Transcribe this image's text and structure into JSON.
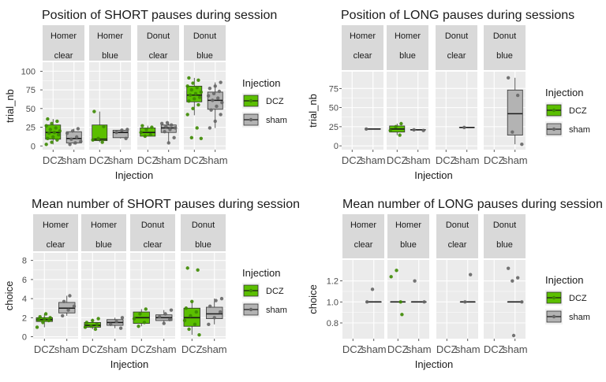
{
  "colors": {
    "panel_bg": "#EBEBEB",
    "strip_bg": "#D9D9D9",
    "grid": "#FFFFFF",
    "text": "#1A1A1A",
    "axis_text": "#4D4D4D",
    "dcz_fill": "#5BBF00",
    "dcz_point": "#3C8A00",
    "sham_fill": "#B3B3B3",
    "sham_point": "#666666"
  },
  "chart_data": [
    {
      "type": "box",
      "title": "Position of SHORT pauses during session",
      "xlabel": "Injection",
      "ylabel": "trial_nb",
      "ylim": [
        -5,
        112
      ],
      "yticks": [
        0,
        25,
        50,
        75,
        100
      ],
      "ytick_labels": [
        "0",
        "25",
        "50",
        "75",
        "100"
      ],
      "grid": true,
      "categories": [
        "DCZ",
        "sham"
      ],
      "legend": {
        "title": "Injection",
        "entries": [
          "DCZ",
          "sham"
        ],
        "position": "right"
      },
      "facets": [
        {
          "strip": [
            "Homer",
            "clear"
          ],
          "boxes": [
            {
              "group": "DCZ",
              "q1": 9,
              "median": 18,
              "q3": 28,
              "whisker_low": 2,
              "whisker_high": 36,
              "points": [
                2,
                5,
                8,
                10,
                12,
                15,
                17,
                18,
                20,
                22,
                24,
                27,
                30,
                33,
                36
              ]
            },
            {
              "group": "sham",
              "q1": 4,
              "median": 10,
              "q3": 19,
              "whisker_low": 2,
              "whisker_high": 23,
              "points": [
                2,
                4,
                6,
                9,
                12,
                17,
                20,
                23
              ]
            }
          ]
        },
        {
          "strip": [
            "Homer",
            "blue"
          ],
          "boxes": [
            {
              "group": "DCZ",
              "q1": 7,
              "median": 9,
              "q3": 28,
              "whisker_low": 5,
              "whisker_high": 46,
              "points": [
                5,
                8,
                10,
                26,
                46
              ]
            },
            {
              "group": "sham",
              "q1": 11,
              "median": 18,
              "q3": 21,
              "whisker_low": 10,
              "whisker_high": 22,
              "points": [
                10,
                18,
                21,
                22
              ]
            }
          ]
        },
        {
          "strip": [
            "Donut",
            "clear"
          ],
          "boxes": [
            {
              "group": "DCZ",
              "q1": 13,
              "median": 18,
              "q3": 24,
              "whisker_low": 13,
              "whisker_high": 27,
              "points": [
                13,
                15,
                18,
                22,
                25,
                27
              ]
            },
            {
              "group": "sham",
              "q1": 18,
              "median": 24,
              "q3": 28,
              "whisker_low": 4,
              "whisker_high": 31,
              "points": [
                4,
                11,
                19,
                22,
                24,
                26,
                28,
                30,
                31
              ]
            }
          ]
        },
        {
          "strip": [
            "Donut",
            "blue"
          ],
          "boxes": [
            {
              "group": "DCZ",
              "q1": 59,
              "median": 68,
              "q3": 80,
              "whisker_low": 41,
              "whisker_high": 91,
              "points": [
                10,
                11,
                24,
                42,
                50,
                55,
                60,
                63,
                65,
                68,
                70,
                72,
                75,
                78,
                80,
                84,
                88,
                91
              ]
            },
            {
              "group": "sham",
              "q1": 49,
              "median": 61,
              "q3": 72,
              "whisker_low": 24,
              "whisker_high": 85,
              "points": [
                24,
                33,
                42,
                48,
                53,
                58,
                61,
                64,
                67,
                70,
                73,
                77,
                80,
                85
              ]
            }
          ]
        }
      ]
    },
    {
      "type": "box",
      "title": "Position of LONG pauses during sessions",
      "xlabel": "Injection",
      "ylabel": "trial_nb",
      "ylim": [
        -5,
        97
      ],
      "yticks": [
        0,
        25,
        50,
        75
      ],
      "ytick_labels": [
        "0",
        "25",
        "50",
        "75"
      ],
      "grid": true,
      "categories": [
        "DCZ",
        "sham"
      ],
      "legend": {
        "title": "Injection",
        "entries": [
          "DCZ",
          "sham"
        ],
        "position": "right"
      },
      "facets": [
        {
          "strip": [
            "Homer",
            "clear"
          ],
          "boxes": [
            {
              "group": "sham",
              "q1": 22,
              "median": 22,
              "q3": 22,
              "whisker_low": 22,
              "whisker_high": 22,
              "points": [
                22
              ]
            }
          ]
        },
        {
          "strip": [
            "Homer",
            "blue"
          ],
          "boxes": [
            {
              "group": "DCZ",
              "q1": 18,
              "median": 22,
              "q3": 26,
              "whisker_low": 14,
              "whisker_high": 29,
              "points": [
                14,
                20,
                25,
                29
              ]
            },
            {
              "group": "sham",
              "q1": 21,
              "median": 21,
              "q3": 21,
              "whisker_low": 20,
              "whisker_high": 21,
              "points": [
                20,
                21
              ]
            }
          ]
        },
        {
          "strip": [
            "Donut",
            "clear"
          ],
          "boxes": [
            {
              "group": "sham",
              "q1": 24,
              "median": 24,
              "q3": 24,
              "whisker_low": 24,
              "whisker_high": 24,
              "points": [
                24
              ]
            }
          ]
        },
        {
          "strip": [
            "Donut",
            "blue"
          ],
          "boxes": [
            {
              "group": "sham",
              "q1": 14,
              "median": 42,
              "q3": 73,
              "whisker_low": 2,
              "whisker_high": 89,
              "points": [
                2,
                18,
                66,
                89
              ]
            }
          ]
        }
      ]
    },
    {
      "type": "box",
      "title": "Mean number of SHORT pauses during session",
      "xlabel": "Injection",
      "ylabel": "choice",
      "ylim": [
        -0.2,
        8.8
      ],
      "yticks": [
        0,
        2,
        4,
        6,
        8
      ],
      "ytick_labels": [
        "0",
        "2",
        "4",
        "6",
        "8"
      ],
      "grid": true,
      "categories": [
        "DCZ",
        "sham"
      ],
      "legend": {
        "title": "Injection",
        "entries": [
          "DCZ",
          "sham"
        ],
        "position": "right"
      },
      "facets": [
        {
          "strip": [
            "Homer",
            "clear"
          ],
          "boxes": [
            {
              "group": "DCZ",
              "q1": 1.6,
              "median": 1.8,
              "q3": 2.0,
              "whisker_low": 1.0,
              "whisker_high": 2.4,
              "points": [
                1.0,
                1.5,
                1.7,
                1.8,
                1.9,
                2.0,
                2.1,
                2.4
              ]
            },
            {
              "group": "sham",
              "q1": 2.5,
              "median": 3.0,
              "q3": 3.6,
              "whisker_low": 2.2,
              "whisker_high": 4.3,
              "points": [
                2.2,
                2.8,
                3.2,
                3.7,
                4.3
              ]
            }
          ]
        },
        {
          "strip": [
            "Homer",
            "blue"
          ],
          "boxes": [
            {
              "group": "DCZ",
              "q1": 1.0,
              "median": 1.2,
              "q3": 1.5,
              "whisker_low": 0.8,
              "whisker_high": 1.9,
              "points": [
                0.8,
                1.0,
                1.1,
                1.3,
                1.5,
                1.7,
                1.9
              ]
            },
            {
              "group": "sham",
              "q1": 1.2,
              "median": 1.5,
              "q3": 1.8,
              "whisker_low": 0.9,
              "whisker_high": 2.0,
              "points": [
                0.9,
                1.3,
                1.6,
                2.0
              ]
            }
          ]
        },
        {
          "strip": [
            "Donut",
            "clear"
          ],
          "boxes": [
            {
              "group": "DCZ",
              "q1": 1.4,
              "median": 2.0,
              "q3": 2.6,
              "whisker_low": 1.1,
              "whisker_high": 2.9,
              "points": [
                1.1,
                1.5,
                1.9,
                2.4,
                2.9
              ]
            },
            {
              "group": "sham",
              "q1": 1.7,
              "median": 2.0,
              "q3": 2.3,
              "whisker_low": 1.4,
              "whisker_high": 2.8,
              "points": [
                1.4,
                1.8,
                2.1,
                2.4,
                2.8
              ]
            }
          ]
        },
        {
          "strip": [
            "Donut",
            "blue"
          ],
          "boxes": [
            {
              "group": "DCZ",
              "q1": 1.1,
              "median": 2.0,
              "q3": 3.0,
              "whisker_low": 0.2,
              "whisker_high": 3.7,
              "points": [
                0.2,
                0.8,
                1.3,
                1.7,
                2.2,
                2.6,
                3.0,
                3.7,
                7.0,
                7.2
              ]
            },
            {
              "group": "sham",
              "q1": 1.9,
              "median": 2.4,
              "q3": 3.1,
              "whisker_low": 1.3,
              "whisker_high": 4.0,
              "points": [
                1.3,
                2.0,
                2.6,
                3.2,
                3.8,
                4.0
              ]
            }
          ]
        }
      ]
    },
    {
      "type": "box",
      "title": "Mean number of LONG pauses during session",
      "xlabel": "Injection",
      "ylabel": "choice",
      "ylim": [
        0.65,
        1.4
      ],
      "yticks": [
        0.8,
        1.0,
        1.2
      ],
      "ytick_labels": [
        "0.8",
        "1.0",
        "1.2"
      ],
      "grid": true,
      "categories": [
        "DCZ",
        "sham"
      ],
      "legend": {
        "title": "Injection",
        "entries": [
          "DCZ",
          "sham"
        ],
        "position": "right"
      },
      "facets": [
        {
          "strip": [
            "Homer",
            "clear"
          ],
          "boxes": [
            {
              "group": "sham",
              "q1": 1.0,
              "median": 1.0,
              "q3": 1.0,
              "whisker_low": 1.0,
              "whisker_high": 1.0,
              "points": [
                1.0,
                1.12
              ]
            }
          ]
        },
        {
          "strip": [
            "Homer",
            "blue"
          ],
          "boxes": [
            {
              "group": "DCZ",
              "q1": 1.0,
              "median": 1.0,
              "q3": 1.0,
              "whisker_low": 1.0,
              "whisker_high": 1.0,
              "points": [
                1.0,
                1.24,
                1.3,
                0.88
              ]
            },
            {
              "group": "sham",
              "q1": 1.0,
              "median": 1.0,
              "q3": 1.0,
              "whisker_low": 1.0,
              "whisker_high": 1.0,
              "points": [
                1.0,
                1.2
              ]
            }
          ]
        },
        {
          "strip": [
            "Donut",
            "clear"
          ],
          "boxes": [
            {
              "group": "sham",
              "q1": 1.0,
              "median": 1.0,
              "q3": 1.0,
              "whisker_low": 1.0,
              "whisker_high": 1.0,
              "points": [
                1.0,
                1.26
              ]
            }
          ]
        },
        {
          "strip": [
            "Donut",
            "blue"
          ],
          "boxes": [
            {
              "group": "sham",
              "q1": 1.0,
              "median": 1.0,
              "q3": 1.0,
              "whisker_low": 1.0,
              "whisker_high": 1.0,
              "points": [
                1.0,
                1.2,
                1.23,
                1.32,
                0.68
              ]
            }
          ]
        }
      ]
    }
  ]
}
